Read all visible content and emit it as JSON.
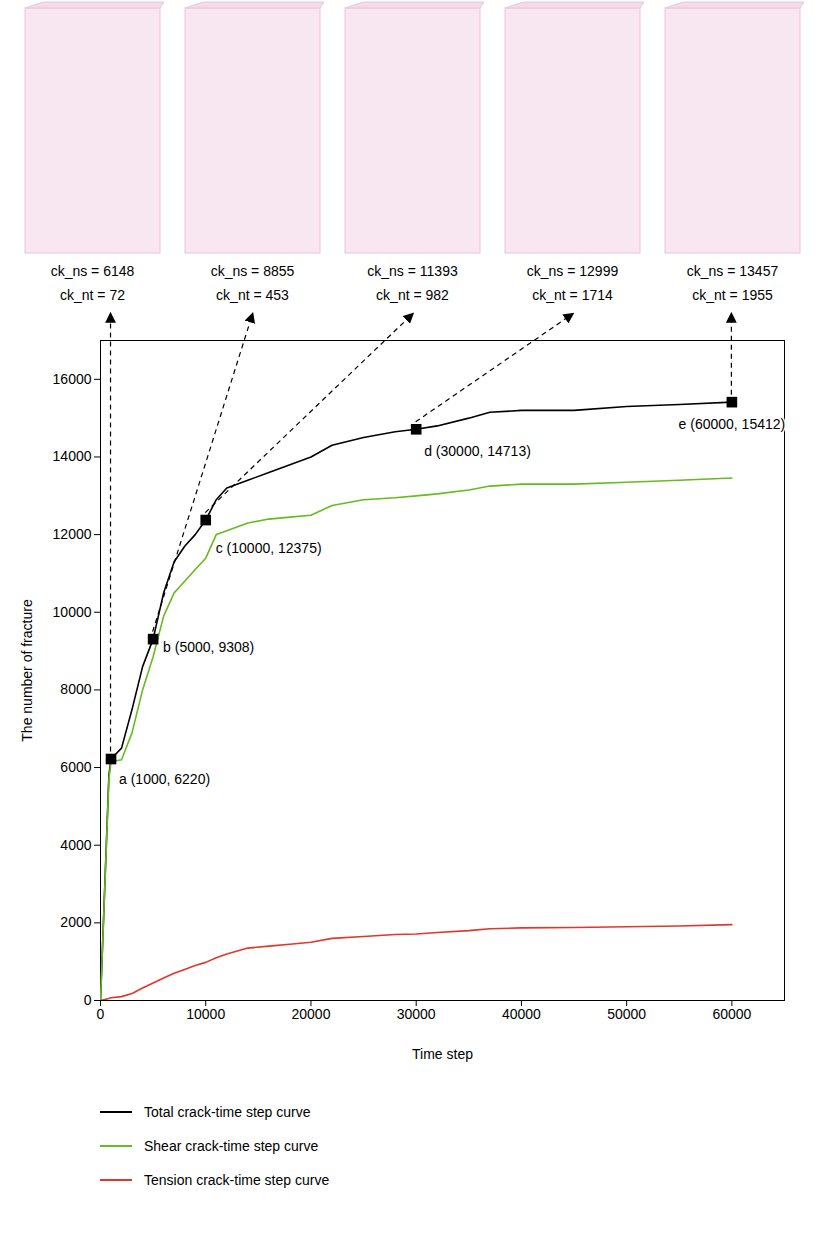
{
  "chart_data": {
    "type": "line",
    "x_label": "Time step",
    "y_label": "The number of fracture",
    "x": [
      0,
      800,
      1000,
      2000,
      3000,
      4000,
      5000,
      6000,
      7000,
      8000,
      9000,
      10000,
      11000,
      12000,
      14000,
      16000,
      18000,
      20000,
      22000,
      25000,
      28000,
      30000,
      32000,
      35000,
      37000,
      40000,
      45000,
      50000,
      55000,
      60000
    ],
    "series": [
      {
        "name": "Total crack-time step curve",
        "color": "#000000",
        "values": [
          0,
          5800,
          6220,
          6500,
          7500,
          8600,
          9308,
          10500,
          11300,
          11700,
          12000,
          12375,
          12900,
          13200,
          13400,
          13600,
          13800,
          14000,
          14300,
          14500,
          14650,
          14713,
          14800,
          15000,
          15150,
          15200,
          15200,
          15300,
          15350,
          15412
        ]
      },
      {
        "name": "Shear crack-time step curve",
        "color": "#66bb1e",
        "values": [
          0,
          5700,
          6148,
          6200,
          6900,
          8000,
          8855,
          9900,
          10500,
          10800,
          11100,
          11393,
          12000,
          12100,
          12300,
          12400,
          12450,
          12500,
          12750,
          12900,
          12950,
          12999,
          13050,
          13150,
          13250,
          13300,
          13300,
          13350,
          13400,
          13457
        ]
      },
      {
        "name": "Tension crack-time step curve",
        "color": "#e0362c",
        "values": [
          0,
          50,
          72,
          100,
          180,
          320,
          453,
          580,
          700,
          800,
          900,
          982,
          1100,
          1200,
          1350,
          1400,
          1450,
          1500,
          1600,
          1650,
          1700,
          1714,
          1750,
          1800,
          1850,
          1870,
          1880,
          1900,
          1920,
          1955
        ]
      }
    ],
    "xlim": [
      0,
      65000
    ],
    "xticks": [
      0,
      10000,
      20000,
      30000,
      40000,
      50000,
      60000
    ],
    "ylim": [
      0,
      17000
    ],
    "yticks": [
      0,
      2000,
      4000,
      6000,
      8000,
      10000,
      12000,
      14000,
      16000
    ],
    "grid": false,
    "legend": "bottom",
    "annotations": [
      {
        "text": "a (1000, 6220)",
        "x": 1000,
        "y": 6220
      },
      {
        "text": "b (5000, 9308)",
        "x": 5000,
        "y": 9308
      },
      {
        "text": "c (10000, 12375)",
        "x": 10000,
        "y": 12375
      },
      {
        "text": "d (30000, 14713)",
        "x": 30000,
        "y": 14713
      },
      {
        "text": "e (60000, 15412)",
        "x": 60000,
        "y": 15412
      }
    ],
    "panels": [
      {
        "lines": [
          "ck_ns = 6148",
          "ck_nt = 72"
        ]
      },
      {
        "lines": [
          "ck_ns = 8855",
          "ck_nt = 453"
        ]
      },
      {
        "lines": [
          "ck_ns = 11393",
          "ck_nt = 982"
        ]
      },
      {
        "lines": [
          "ck_ns = 12999",
          "ck_nt = 1714"
        ]
      },
      {
        "lines": [
          "ck_ns = 13457",
          "ck_nt = 1955"
        ]
      }
    ]
  }
}
